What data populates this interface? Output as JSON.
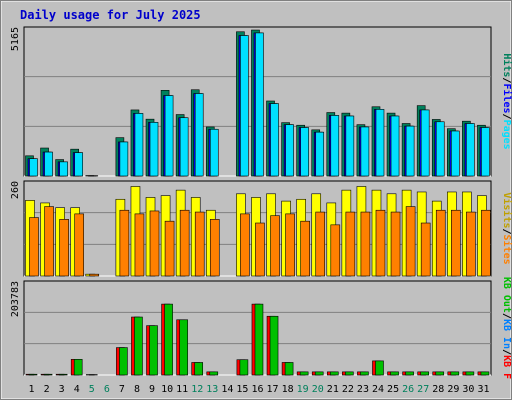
{
  "title": "Daily usage for July 2025",
  "colors": {
    "background": "#c0c0c0",
    "plot": "#c0c0c0",
    "title": "#0000cc",
    "hits": "#00805c",
    "files": "#0000ff",
    "pages": "#00e0ff",
    "visits": "#ffff00",
    "sites": "#ff8000",
    "kbin": "#00c000",
    "kbout": "#0080ff",
    "kbf": "#ff0000",
    "weekday": "#000000",
    "weekend": "#00805c"
  },
  "panels": {
    "top": {
      "max_label": "5165",
      "legend": [
        {
          "text": "Pages",
          "color": "#00e0ff"
        },
        {
          "text": "Files",
          "color": "#0000ff"
        },
        {
          "text": "Hits",
          "color": "#00805c"
        }
      ]
    },
    "middle": {
      "max_label": "260",
      "legend": [
        {
          "text": "Sites",
          "color": "#ff8000"
        },
        {
          "text": "Visits",
          "color": "#c0a000"
        }
      ]
    },
    "bottom": {
      "max_label": "203783",
      "legend": [
        {
          "text": "KB F",
          "color": "#ff0000"
        },
        {
          "text": "KB In",
          "color": "#0080ff"
        },
        {
          "text": "KB Out",
          "color": "#00c000"
        }
      ]
    }
  },
  "chart_data": [
    {
      "type": "bar",
      "panel": "top",
      "categories": [
        "1",
        "2",
        "3",
        "4",
        "5",
        "6",
        "7",
        "8",
        "9",
        "10",
        "11",
        "12",
        "13",
        "14",
        "15",
        "16",
        "17",
        "18",
        "19",
        "20",
        "21",
        "22",
        "23",
        "24",
        "25",
        "26",
        "27",
        "28",
        "29",
        "30",
        "31"
      ],
      "weekend_days": [
        "5",
        "6",
        "12",
        "13",
        "19",
        "20",
        "26",
        "27"
      ],
      "ylim": [
        0,
        5165
      ],
      "series": [
        {
          "name": "Hits",
          "values": [
            700,
            970,
            570,
            930,
            15,
            0,
            1330,
            2290,
            1970,
            2970,
            2130,
            2990,
            1700,
            0,
            5000,
            5060,
            2600,
            1850,
            1760,
            1600,
            2200,
            2180,
            1780,
            2400,
            2180,
            1820,
            2440,
            1960,
            1640,
            1900,
            1760
          ]
        },
        {
          "name": "Files",
          "values": [
            600,
            830,
            490,
            810,
            10,
            0,
            1180,
            2170,
            1860,
            2790,
            2020,
            2860,
            1620,
            0,
            4870,
            4960,
            2510,
            1780,
            1680,
            1520,
            2100,
            2080,
            1700,
            2310,
            2080,
            1730,
            2290,
            1880,
            1560,
            1820,
            1680
          ]
        },
        {
          "name": "Pages",
          "values": [
            600,
            830,
            490,
            810,
            10,
            0,
            1180,
            2170,
            1860,
            2790,
            2020,
            2860,
            1620,
            0,
            4870,
            4960,
            2510,
            1780,
            1680,
            1520,
            2100,
            2080,
            1700,
            2310,
            2080,
            1730,
            2290,
            1880,
            1560,
            1820,
            1680
          ]
        }
      ]
    },
    {
      "type": "bar",
      "panel": "middle",
      "categories": [
        "1",
        "2",
        "3",
        "4",
        "5",
        "6",
        "7",
        "8",
        "9",
        "10",
        "11",
        "12",
        "13",
        "14",
        "15",
        "16",
        "17",
        "18",
        "19",
        "20",
        "21",
        "22",
        "23",
        "24",
        "25",
        "26",
        "27",
        "28",
        "29",
        "30",
        "31"
      ],
      "ylim": [
        0,
        260
      ],
      "series": [
        {
          "name": "Visits",
          "values": [
            207,
            200,
            187,
            187,
            5,
            0,
            210,
            245,
            215,
            220,
            235,
            215,
            180,
            0,
            225,
            215,
            225,
            205,
            210,
            225,
            200,
            235,
            245,
            235,
            225,
            235,
            230,
            205,
            230,
            230,
            220
          ]
        },
        {
          "name": "Sites",
          "values": [
            160,
            190,
            155,
            170,
            5,
            0,
            180,
            170,
            178,
            150,
            180,
            175,
            155,
            0,
            170,
            145,
            165,
            170,
            150,
            175,
            140,
            175,
            175,
            180,
            175,
            190,
            145,
            180,
            180,
            175,
            180
          ]
        }
      ]
    },
    {
      "type": "bar",
      "panel": "bottom",
      "categories": [
        "1",
        "2",
        "3",
        "4",
        "5",
        "6",
        "7",
        "8",
        "9",
        "10",
        "11",
        "12",
        "13",
        "14",
        "15",
        "16",
        "17",
        "18",
        "19",
        "20",
        "21",
        "22",
        "23",
        "24",
        "25",
        "26",
        "27",
        "28",
        "29",
        "30",
        "31"
      ],
      "ylim": [
        0,
        240000
      ],
      "series": [
        {
          "name": "KB F",
          "values": [
            2000,
            2000,
            2000,
            40000,
            1000,
            0,
            70000,
            148000,
            126000,
            181000,
            141000,
            32000,
            8000,
            0,
            39000,
            181000,
            150000,
            32000,
            8000,
            8000,
            8000,
            8000,
            8000,
            36000,
            8000,
            8000,
            8000,
            8000,
            8000,
            8000,
            8000
          ]
        },
        {
          "name": "KB In",
          "values": [
            1500,
            1500,
            1500,
            38000,
            800,
            0,
            68000,
            146000,
            124000,
            179000,
            139000,
            30000,
            7500,
            0,
            37000,
            179000,
            148000,
            30000,
            7500,
            7500,
            7500,
            7500,
            7500,
            34000,
            7500,
            7500,
            7500,
            7500,
            7500,
            7500,
            7500
          ]
        },
        {
          "name": "KB Out",
          "values": [
            2000,
            2000,
            2000,
            40000,
            1000,
            0,
            70000,
            148000,
            126000,
            181000,
            141000,
            32000,
            8000,
            0,
            39000,
            181000,
            150000,
            32000,
            8000,
            8000,
            8000,
            8000,
            8000,
            36000,
            8000,
            8000,
            8000,
            8000,
            8000,
            8000,
            8000
          ]
        }
      ]
    }
  ]
}
